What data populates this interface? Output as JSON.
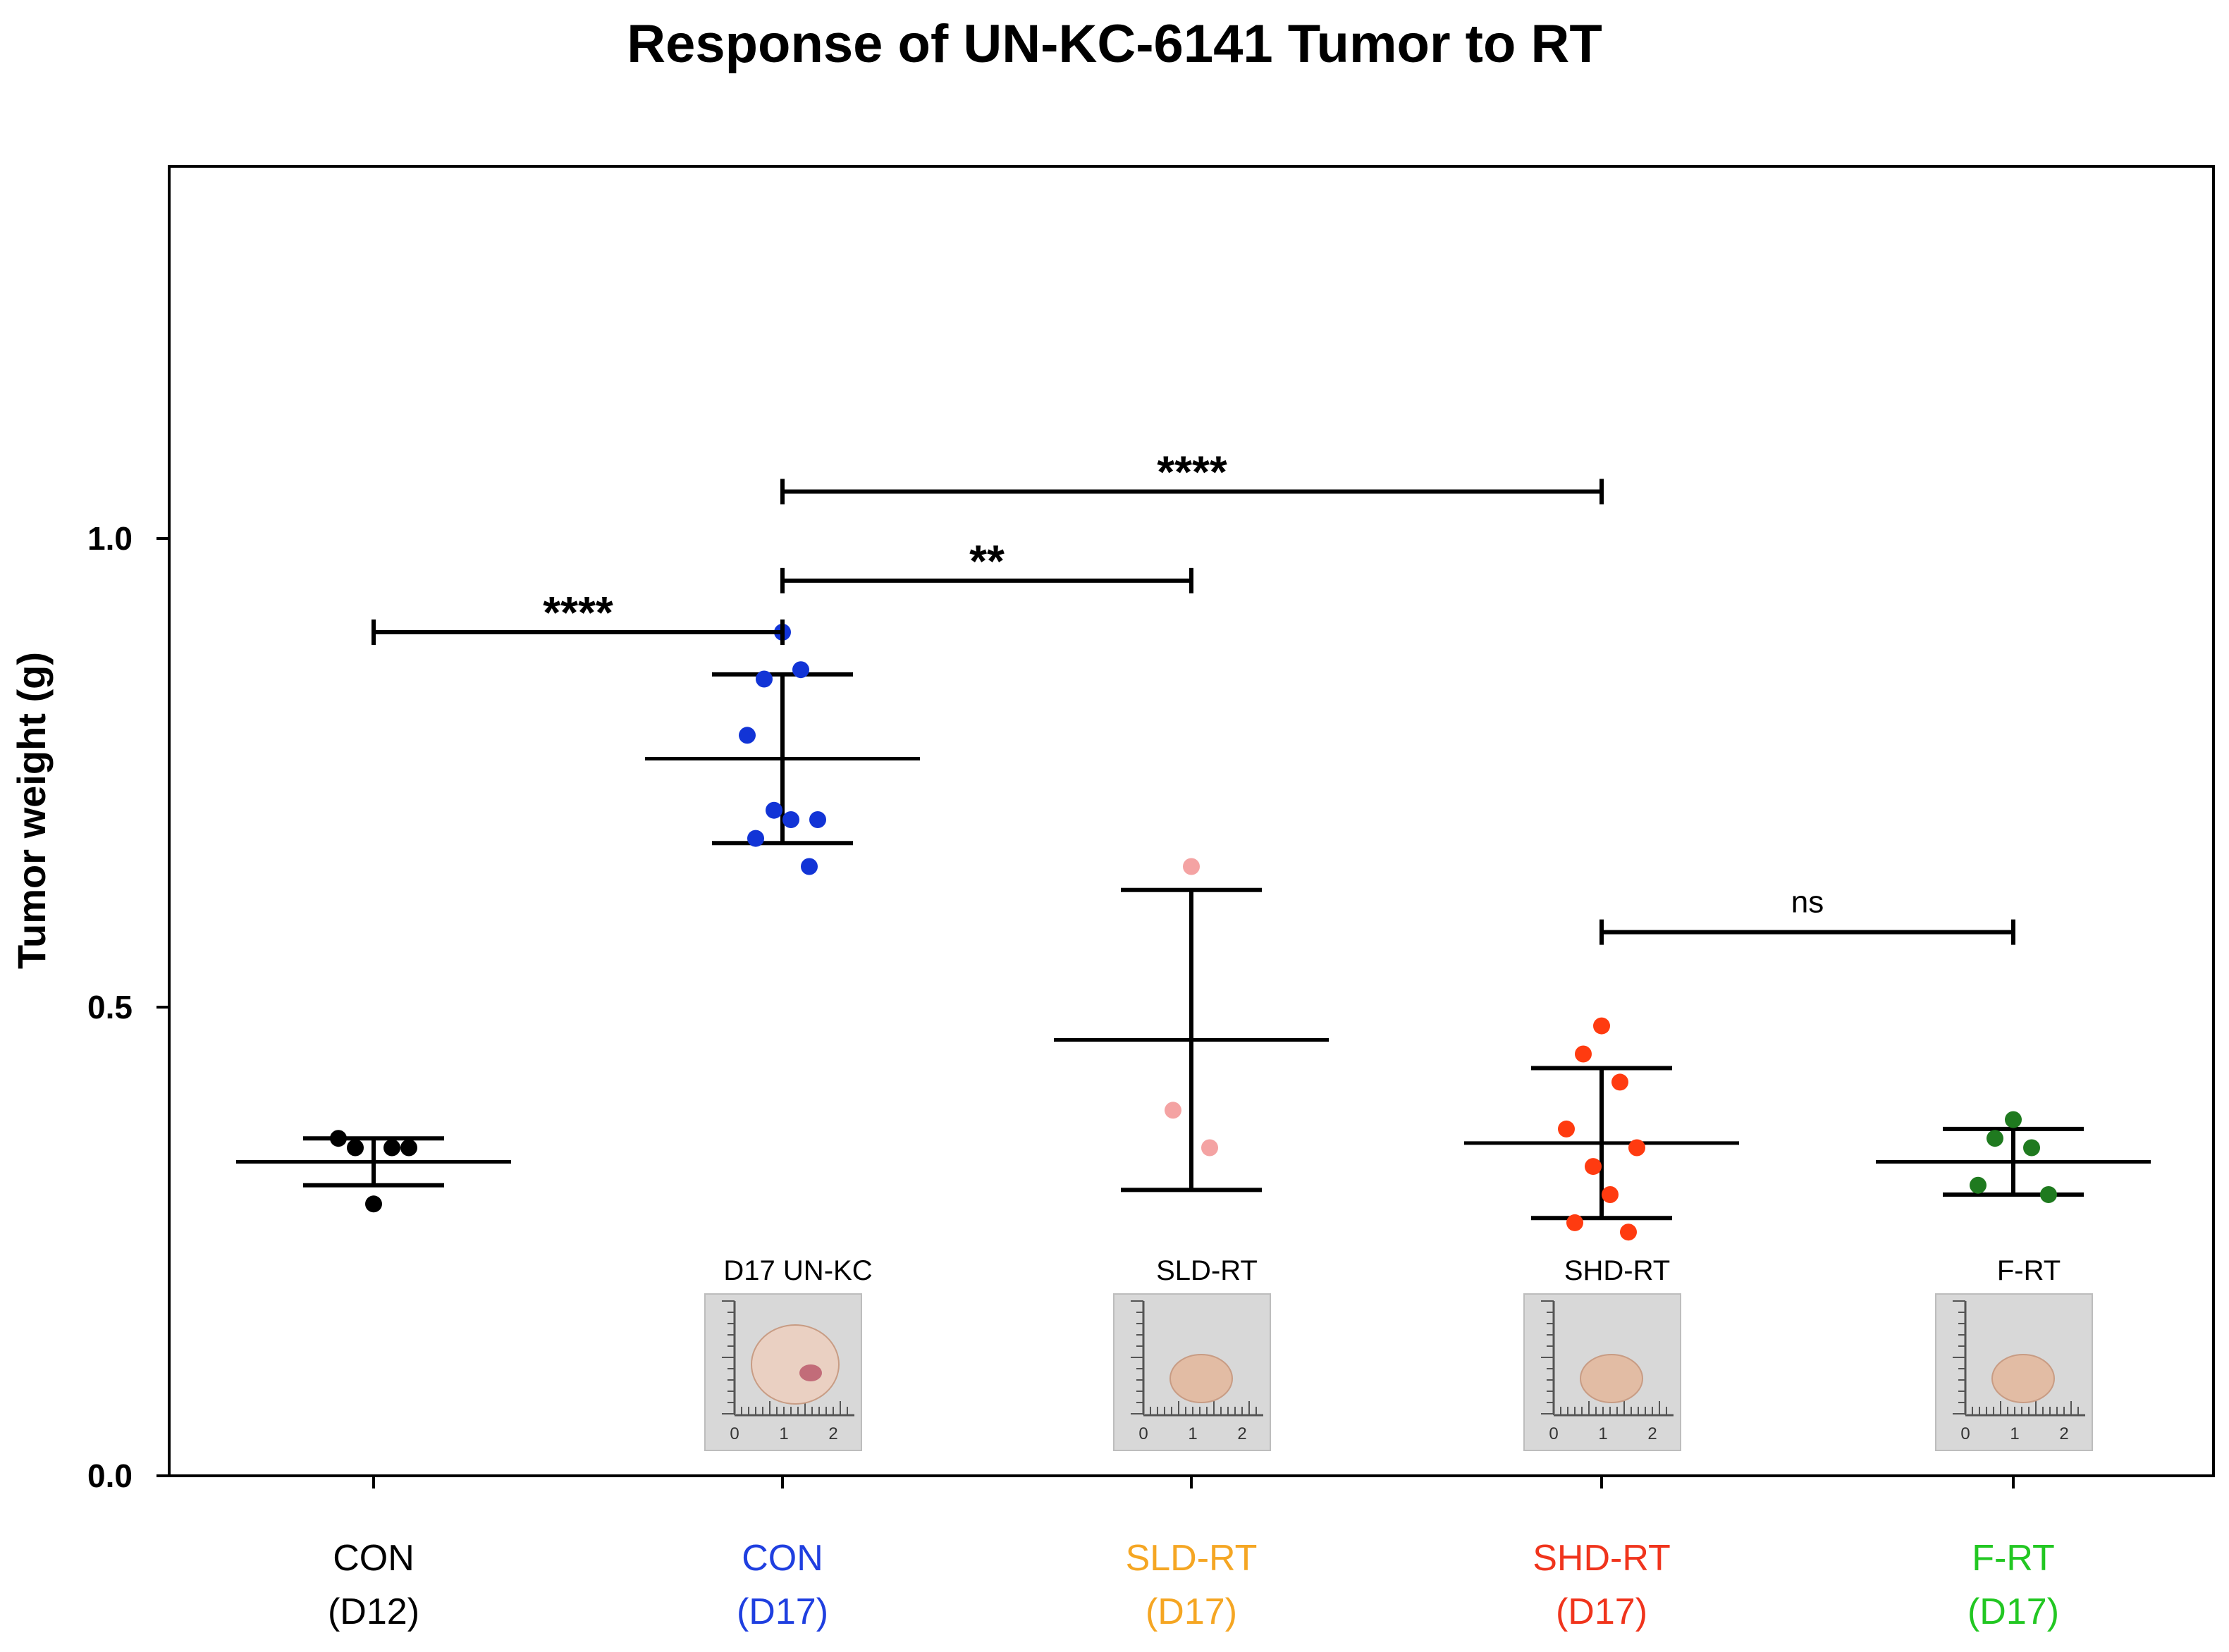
{
  "chart_data": {
    "type": "scatter",
    "title": "Response of UN-KC-6141 Tumor to RT",
    "xlabel": "",
    "ylabel": "Tumor weight (g)",
    "ylim": [
      0,
      1.4
    ],
    "yticks": [
      {
        "value": 0.0,
        "label": "0.0"
      },
      {
        "value": 0.5,
        "label": "0.5"
      },
      {
        "value": 1.0,
        "label": "1.0"
      }
    ],
    "groups": [
      {
        "id": "g0",
        "line1": "CON",
        "line2": "(D12)",
        "label_color": "#000000",
        "dot_color": "#000000",
        "points": [
          0.29,
          0.35,
          0.35,
          0.36,
          0.35
        ],
        "mean": 0.335,
        "upper": 0.36,
        "lower": 0.31
      },
      {
        "id": "g1",
        "line1": "CON",
        "line2": "(D17)",
        "label_color": "#1f3fe0",
        "dot_color": "#1234d6",
        "points": [
          0.9,
          0.85,
          0.86,
          0.79,
          0.7,
          0.71,
          0.7,
          0.68,
          0.65
        ],
        "mean": 0.765,
        "upper": 0.855,
        "lower": 0.675
      },
      {
        "id": "g2",
        "line1": "SLD-RT",
        "line2": "(D17)",
        "label_color": "#f5a623",
        "dot_color": "#f4a3a3",
        "points": [
          0.65,
          0.39,
          0.35
        ],
        "mean": 0.465,
        "upper": 0.625,
        "lower": 0.305
      },
      {
        "id": "g3",
        "line1": "SHD-RT",
        "line2": "(D17)",
        "label_color": "#f0341c",
        "dot_color": "#ff3b10",
        "points": [
          0.48,
          0.45,
          0.42,
          0.37,
          0.35,
          0.33,
          0.3,
          0.27,
          0.26
        ],
        "mean": 0.355,
        "upper": 0.435,
        "lower": 0.275
      },
      {
        "id": "g4",
        "line1": "F-RT",
        "line2": "(D17)",
        "label_color": "#22c722",
        "dot_color": "#1f7a1f",
        "points": [
          0.38,
          0.36,
          0.35,
          0.31,
          0.3
        ],
        "mean": 0.335,
        "upper": 0.37,
        "lower": 0.3
      }
    ],
    "comparisons": [
      {
        "from": "g0",
        "to": "g1",
        "y": 0.9,
        "label": "****"
      },
      {
        "from": "g1",
        "to": "g2",
        "y": 0.955,
        "label": "**"
      },
      {
        "from": "g1",
        "to": "g3",
        "y": 1.05,
        "label": "****"
      },
      {
        "from": "g3",
        "to": "g4",
        "y": 0.58,
        "label": "ns"
      }
    ],
    "photo_insets": [
      {
        "group": "g1",
        "label": "D17 UN-KC",
        "ruler": [
          "0",
          "1",
          "2"
        ]
      },
      {
        "group": "g2",
        "label": "SLD-RT",
        "ruler": [
          "0",
          "1",
          "2"
        ]
      },
      {
        "group": "g3",
        "label": "SHD-RT",
        "ruler": [
          "0",
          "1",
          "2"
        ]
      },
      {
        "group": "g4",
        "label": "F-RT",
        "ruler": [
          "0",
          "1",
          "2"
        ]
      }
    ]
  }
}
